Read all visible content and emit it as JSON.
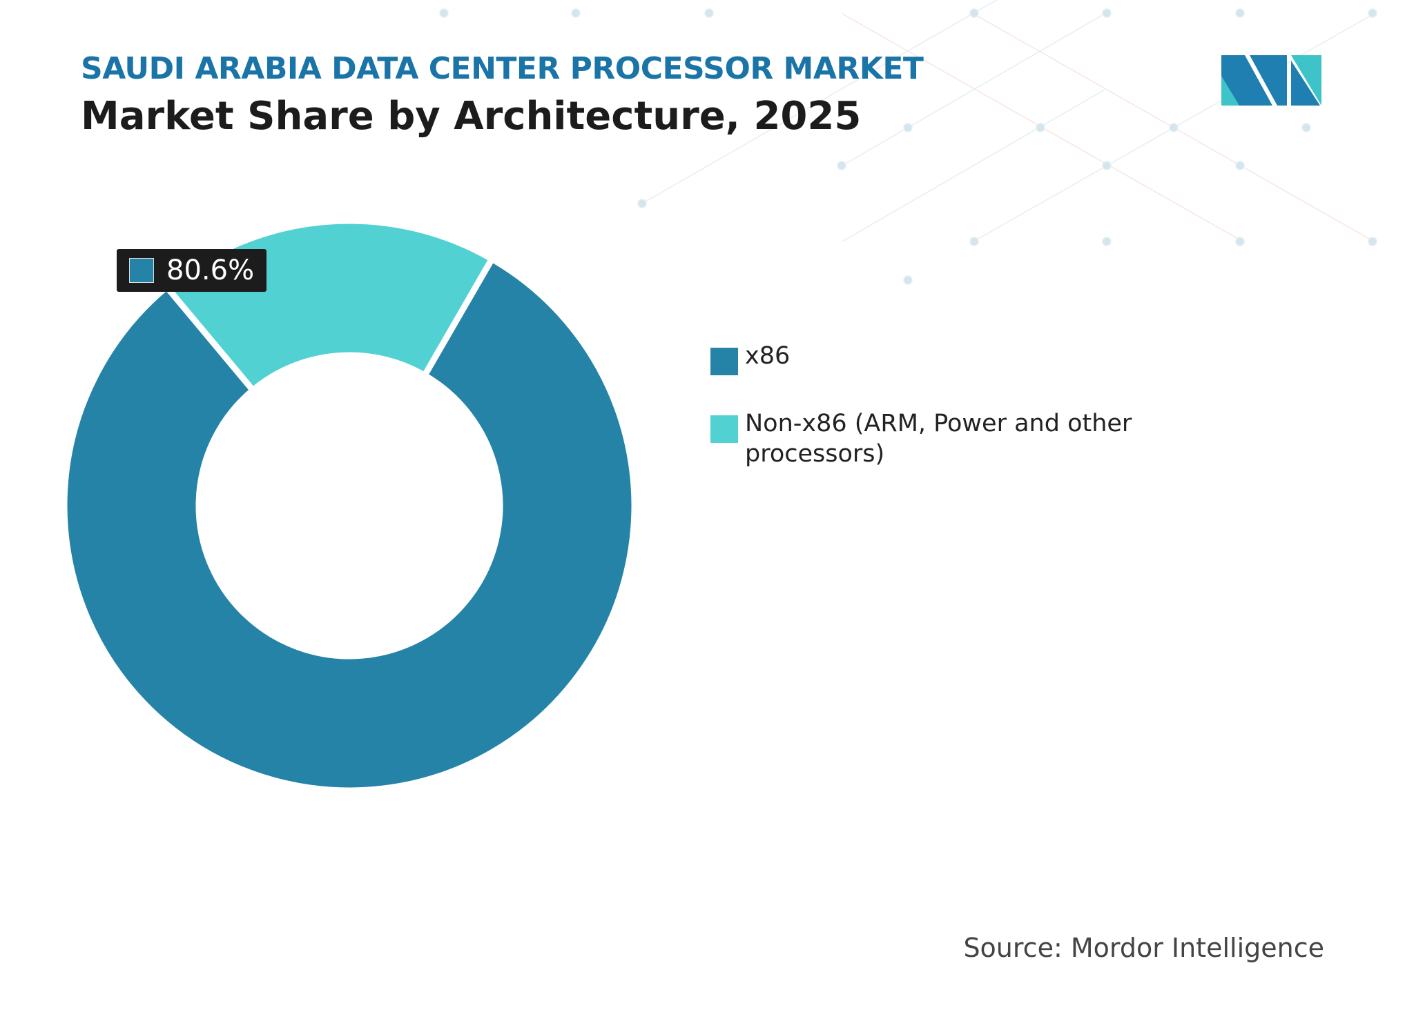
{
  "chart_data": {
    "type": "pie",
    "donut": true,
    "title": "SAUDI ARABIA DATA CENTER PROCESSOR MARKET",
    "subtitle": "Market Share by Architecture, 2025",
    "categories": [
      "x86",
      "Non-x86 (ARM, Power and other processors)"
    ],
    "values": [
      80.6,
      19.4
    ],
    "value_labels": [
      "80.6%",
      null
    ],
    "colors": [
      "#2683a8",
      "#52d1d3"
    ],
    "source": "Source: Mordor Intelligence"
  }
}
